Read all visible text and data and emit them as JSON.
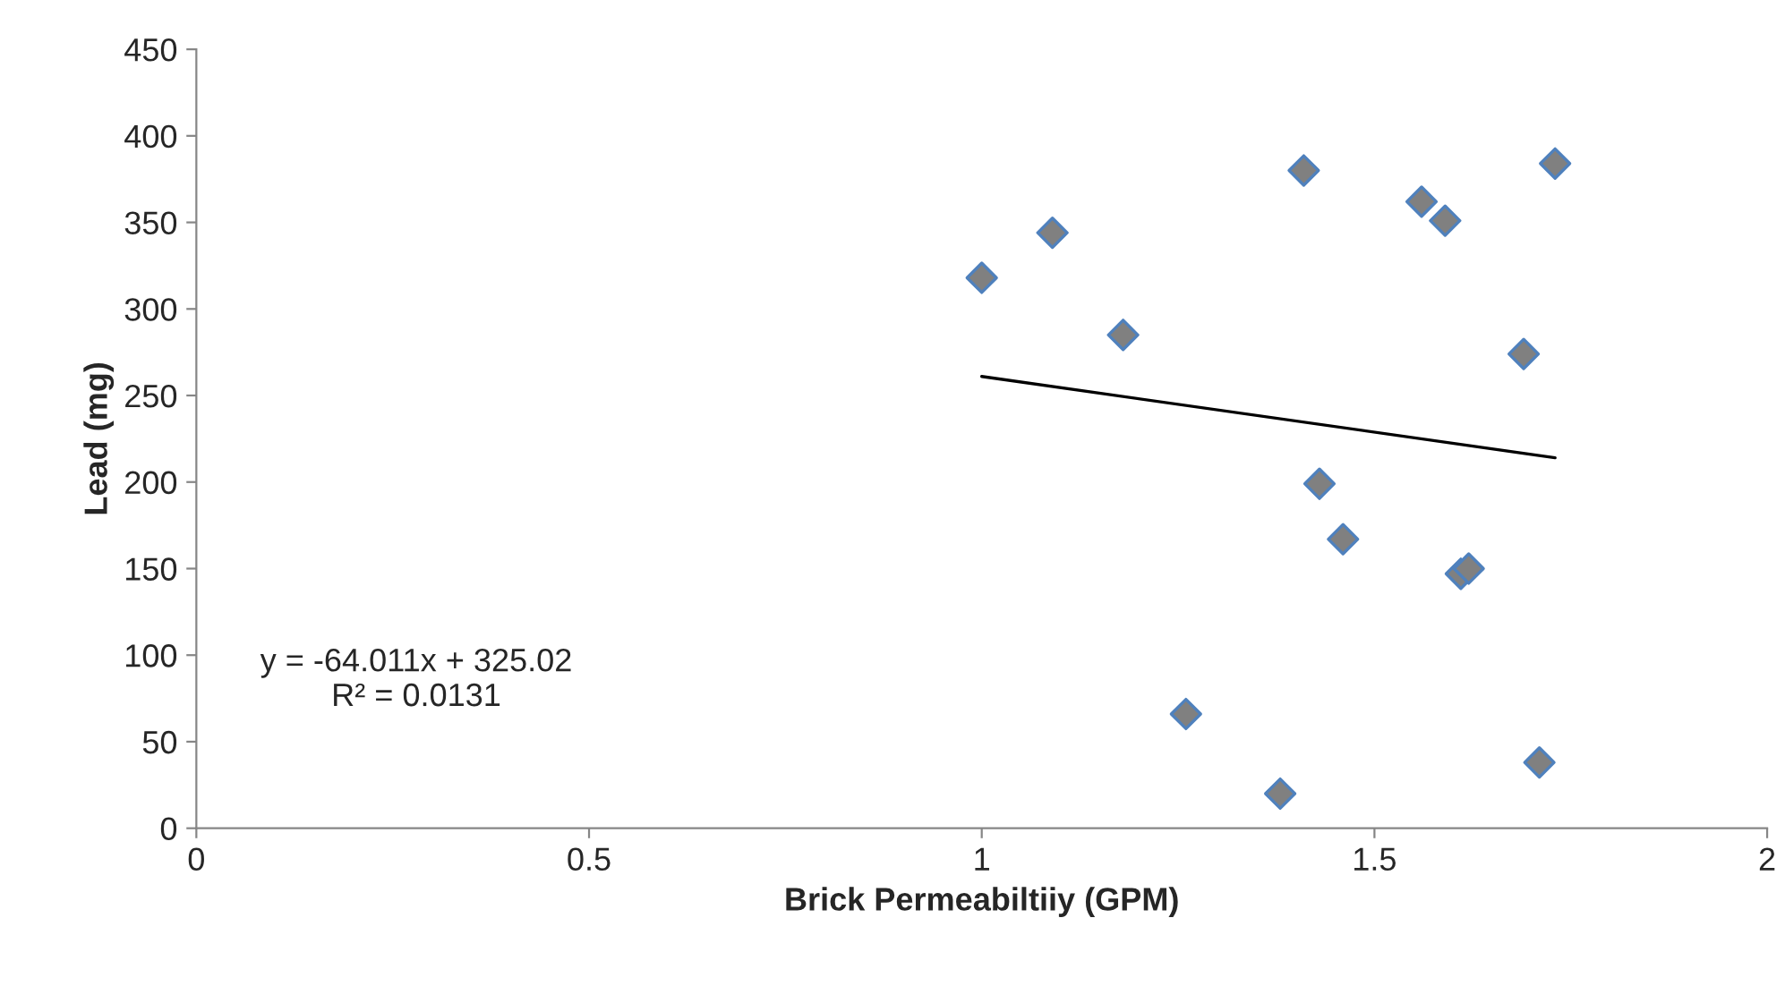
{
  "chart_data": {
    "type": "scatter",
    "xlabel": "Brick Permeabiltiiy (GPM)",
    "ylabel": "Lead (mg)",
    "xlim": [
      0,
      2
    ],
    "xticks": [
      0,
      0.5,
      1,
      1.5,
      2
    ],
    "ylim": [
      0,
      450
    ],
    "yticks": [
      0,
      50,
      100,
      150,
      200,
      250,
      300,
      350,
      400,
      450
    ],
    "grid": false,
    "legend": false,
    "series": [
      {
        "marker": "diamond",
        "color": "#808080",
        "x": [
          1.0,
          1.09,
          1.18,
          1.26,
          1.38,
          1.41,
          1.43,
          1.46,
          1.56,
          1.59,
          1.61,
          1.62,
          1.69,
          1.71,
          1.73
        ],
        "values": [
          318,
          344,
          285,
          66,
          20,
          380,
          199,
          167,
          362,
          351,
          147,
          150,
          274,
          38,
          384
        ]
      },
      {
        "type": "line",
        "color": "#000000",
        "x": [
          1.0,
          1.73
        ],
        "values": [
          261,
          214
        ]
      }
    ],
    "annotations": [
      "y = -64.011x + 325.02\nR² = 0.0131"
    ]
  }
}
